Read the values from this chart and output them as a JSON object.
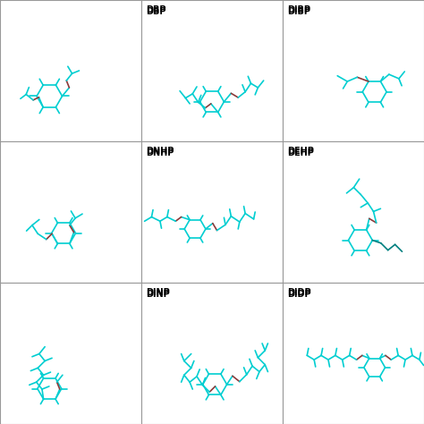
{
  "figsize": [
    4.74,
    4.74
  ],
  "dpi": 100,
  "background": "#ffffff",
  "cyan": "#00CED1",
  "red": "#8B3A3A",
  "dark_cyan": "#008080",
  "lw": 1.2,
  "label_fs": 7,
  "grid_color": "#999999",
  "labels": {
    "01": "DBP",
    "02": "DIBP",
    "11": "DNHP",
    "12": "DEHP",
    "21": "DINP",
    "22": "DIDP"
  }
}
